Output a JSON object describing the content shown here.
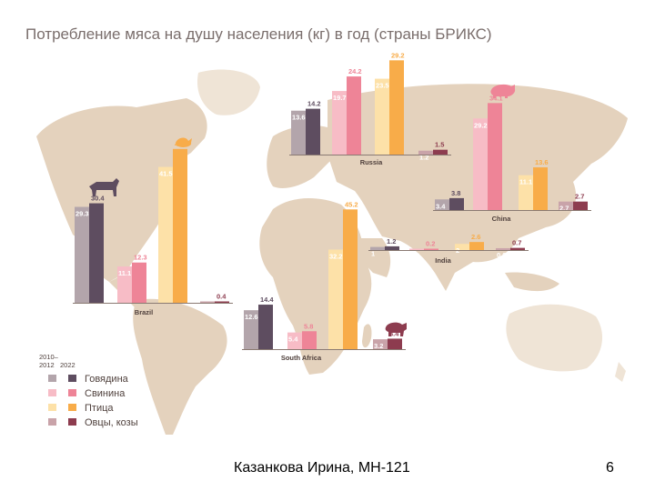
{
  "title": "Потребление мяса на душу населения (кг) в год (страны БРИКС)",
  "footer": {
    "author": "Казанкова Ирина, МН-121",
    "page_number": "6"
  },
  "legend": {
    "period_old": "2010–\n2012",
    "period_new": "2022",
    "items": [
      "Говядина",
      "Свинина",
      "Птица",
      "Овцы, козы"
    ]
  },
  "colors": {
    "beef_old": "#b3a5ab",
    "beef_new": "#5e4d60",
    "pork_old": "#f7bcc6",
    "pork_new": "#ee8497",
    "poultry_old": "#fde1a8",
    "poultry_new": "#f8ac49",
    "mutton_old": "#c9a3a9",
    "mutton_new": "#8d3c4f",
    "map_land": "#e4d2bd",
    "map_land_light": "#efe4d6"
  },
  "chart_data": {
    "type": "bar",
    "series_names": [
      "Говядина",
      "Свинина",
      "Птица",
      "Овцы, козы"
    ],
    "periods": [
      "2010–2012",
      "2022"
    ],
    "countries": [
      {
        "name": "Russia",
        "groups": [
          {
            "category": "Говядина",
            "values": [
              13.6,
              14.2
            ]
          },
          {
            "category": "Свинина",
            "values": [
              19.7,
              24.2
            ]
          },
          {
            "category": "Птица",
            "values": [
              23.5,
              29.2
            ]
          },
          {
            "category": "Овцы, козы",
            "values": [
              1.2,
              1.5
            ]
          }
        ]
      },
      {
        "name": "China",
        "groups": [
          {
            "category": "Говядина",
            "values": [
              3.4,
              3.8
            ]
          },
          {
            "category": "Свинина",
            "values": [
              29.2,
              34.1
            ]
          },
          {
            "category": "Птица",
            "values": [
              11.1,
              13.6
            ]
          },
          {
            "category": "Овцы, козы",
            "values": [
              2.7,
              2.7
            ]
          }
        ]
      },
      {
        "name": "India",
        "groups": [
          {
            "category": "Говядина",
            "values": [
              1.0,
              1.2
            ]
          },
          {
            "category": "Свинина",
            "values": [
              0.2,
              0.2
            ]
          },
          {
            "category": "Птица",
            "values": [
              2.0,
              2.6
            ]
          },
          {
            "category": "Овцы, козы",
            "values": [
              0.6,
              0.7
            ]
          }
        ]
      },
      {
        "name": "Brazil",
        "groups": [
          {
            "category": "Говядина",
            "values": [
              29.3,
              30.4
            ]
          },
          {
            "category": "Свинина",
            "values": [
              11.1,
              12.3
            ]
          },
          {
            "category": "Птица",
            "values": [
              41.5,
              47.0
            ]
          },
          {
            "category": "Овцы, козы",
            "values": [
              0.4,
              0.4
            ]
          }
        ]
      },
      {
        "name": "South Africa",
        "groups": [
          {
            "category": "Говядина",
            "values": [
              12.6,
              14.4
            ]
          },
          {
            "category": "Свинина",
            "values": [
              5.4,
              5.8
            ]
          },
          {
            "category": "Птица",
            "values": [
              32.2,
              45.2
            ]
          },
          {
            "category": "Овцы, козы",
            "values": [
              3.2,
              3.4
            ]
          }
        ]
      }
    ]
  }
}
